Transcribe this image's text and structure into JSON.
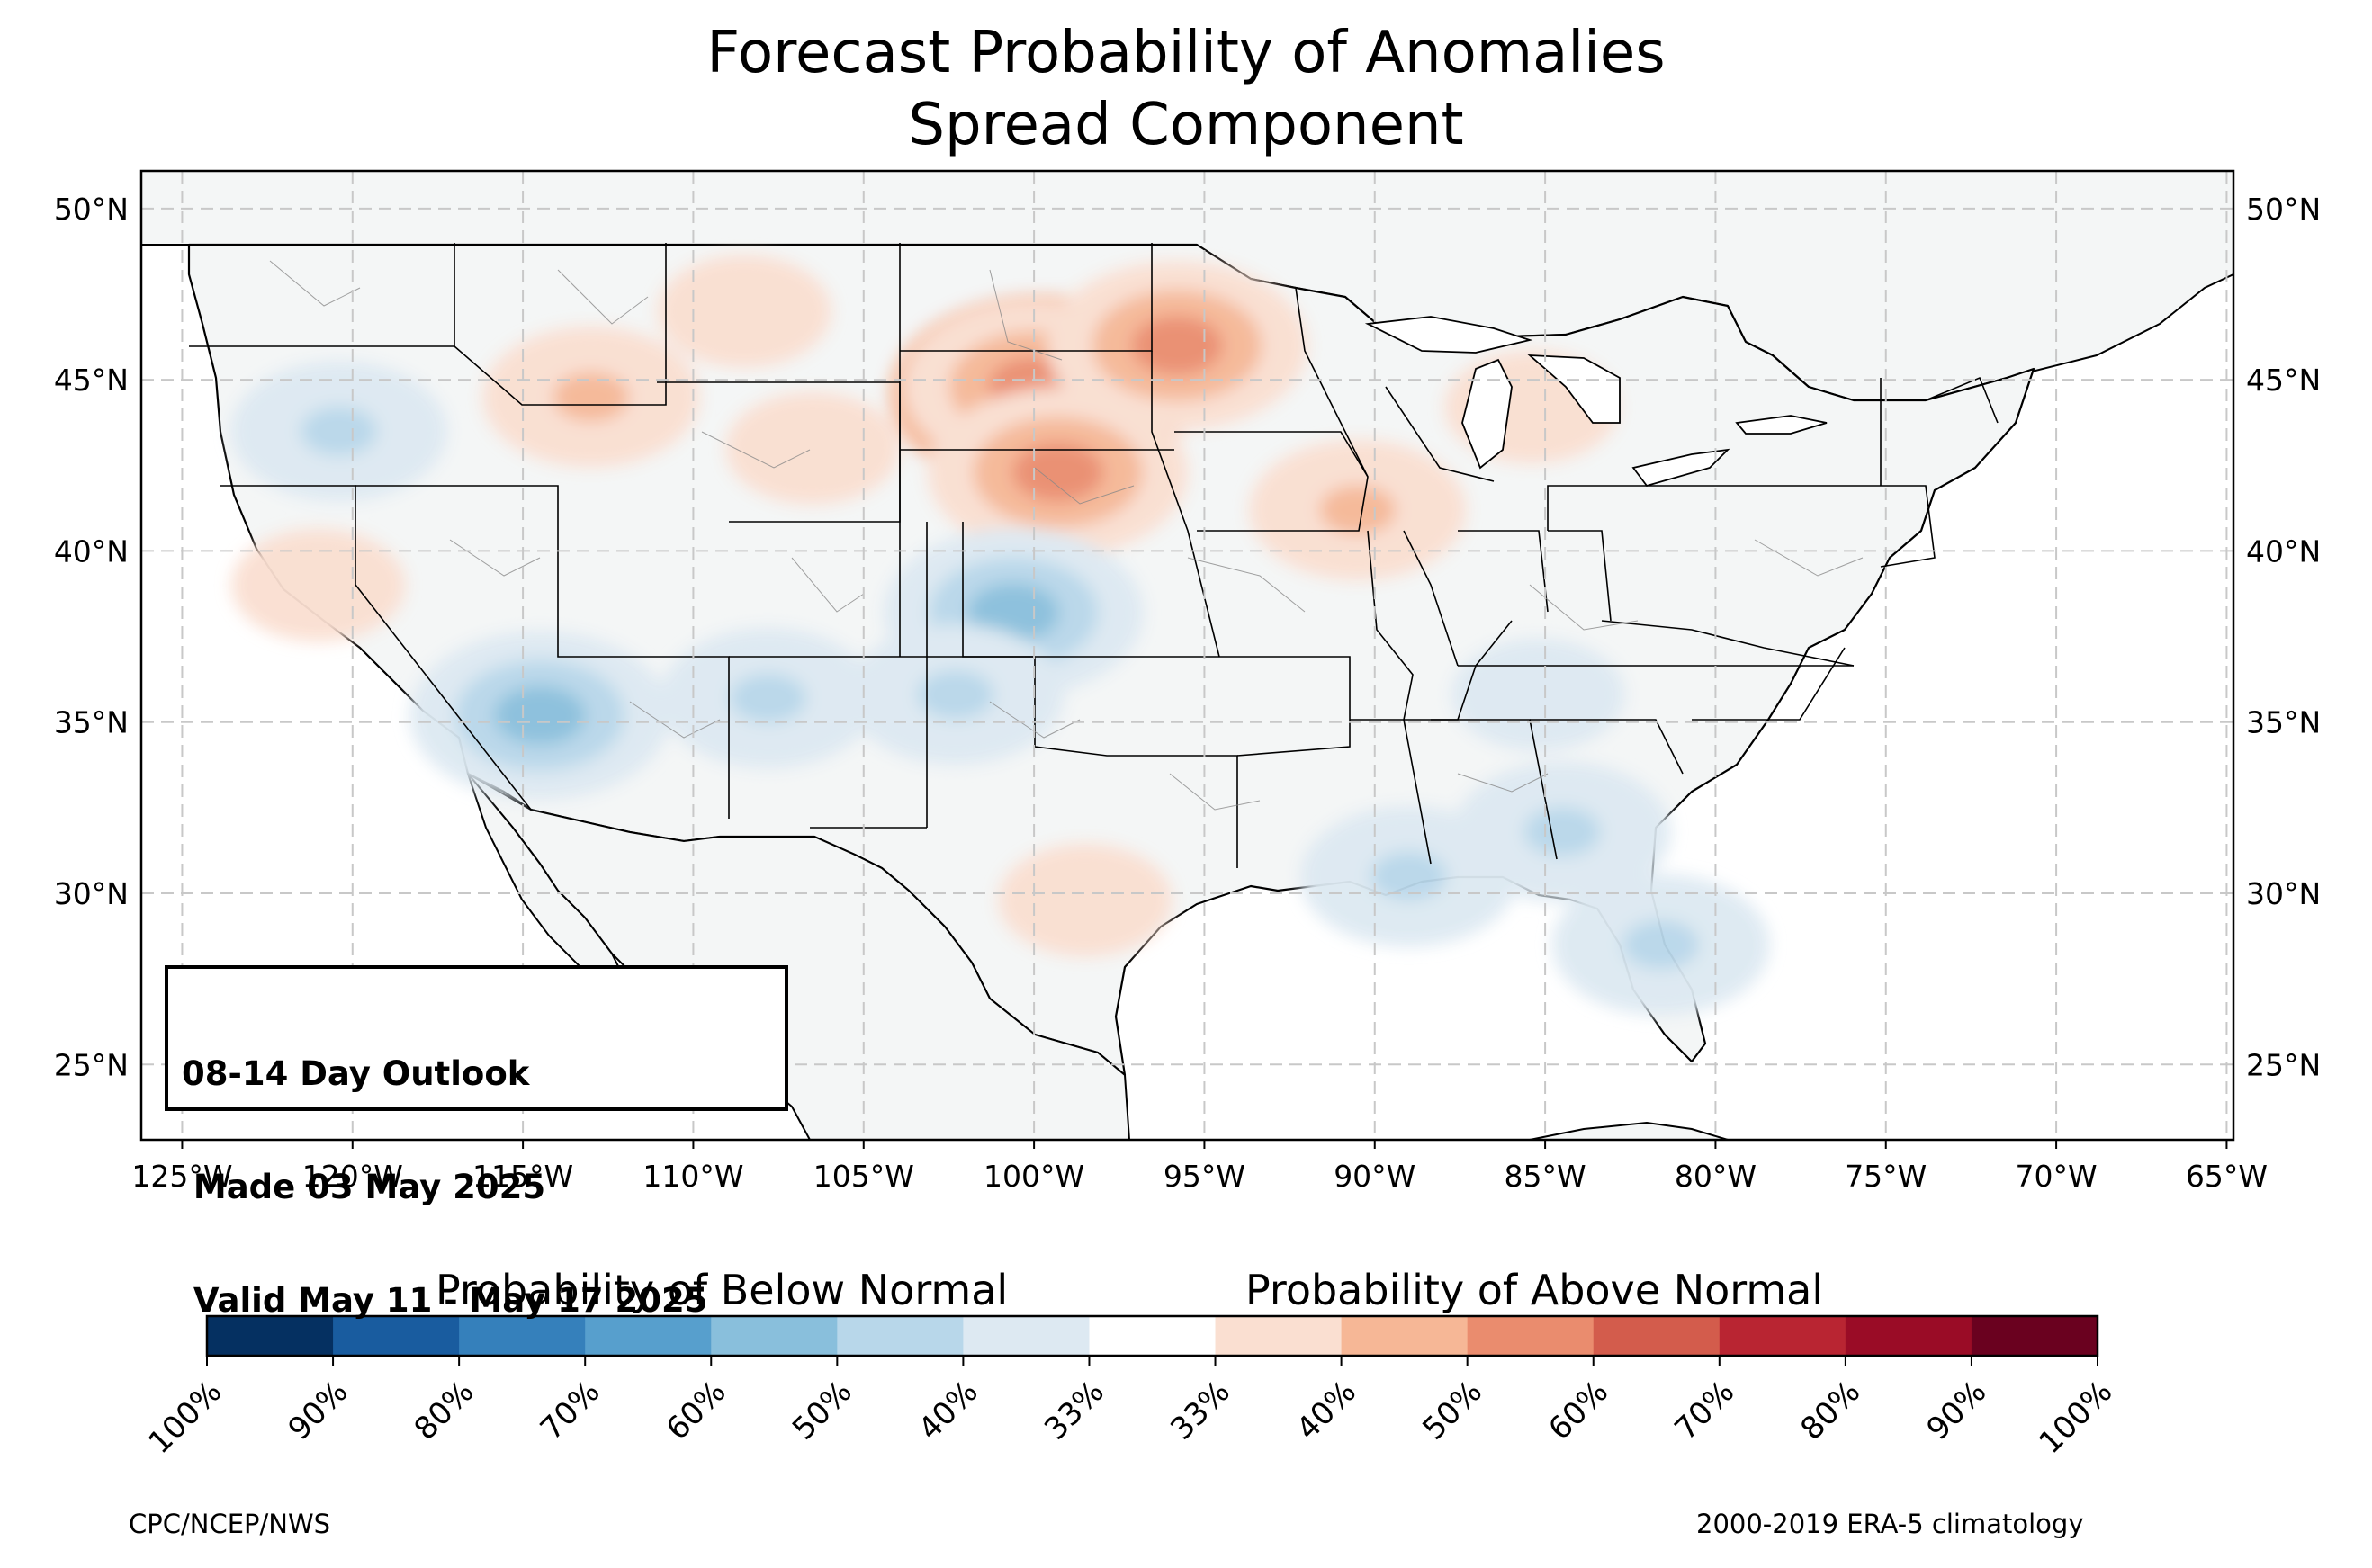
{
  "title": {
    "line1": "Forecast Probability of Anomalies",
    "line2": "Spread Component"
  },
  "outlook": {
    "line1": "08-14 Day Outlook",
    "line2": " Made 03 May 2025",
    "line3": " Valid May 11 - May 17 2025"
  },
  "map": {
    "lat_labels": [
      "50°N",
      "45°N",
      "40°N",
      "35°N",
      "30°N",
      "25°N"
    ],
    "lat_values": [
      50,
      45,
      40,
      35,
      30,
      25
    ],
    "lon_labels": [
      "125°W",
      "120°W",
      "115°W",
      "110°W",
      "105°W",
      "100°W",
      "95°W",
      "90°W",
      "85°W",
      "80°W",
      "75°W",
      "70°W",
      "65°W"
    ],
    "lon_values": [
      -125,
      -120,
      -115,
      -110,
      -105,
      -100,
      -95,
      -90,
      -85,
      -80,
      -75,
      -70,
      -65
    ],
    "extent": {
      "lon_min": -126.2,
      "lon_max": -64.8,
      "lat_min": 22.8,
      "lat_max": 51.1
    },
    "grid": "dashed",
    "land_color": "#f4f6f6",
    "above_regions": [
      {
        "name": "northern-plains",
        "lon": -99.8,
        "lat": 44.6,
        "level": 70
      },
      {
        "name": "northern-plains-core",
        "lon": -100.0,
        "lat": 44.8,
        "level": 60
      },
      {
        "name": "nebraska",
        "lon": -99.3,
        "lat": 42.3,
        "level": 60
      },
      {
        "name": "minnesota",
        "lon": -95.8,
        "lat": 46.0,
        "level": 60
      },
      {
        "name": "iowa-illinois",
        "lon": -90.5,
        "lat": 41.2,
        "level": 50
      },
      {
        "name": "michigan",
        "lon": -85.4,
        "lat": 44.2,
        "level": 40
      },
      {
        "name": "montana",
        "lon": -108.5,
        "lat": 47.0,
        "level": 40
      },
      {
        "name": "wyoming",
        "lon": -106.5,
        "lat": 43.0,
        "level": 40
      },
      {
        "name": "idaho",
        "lon": -113.0,
        "lat": 44.5,
        "level": 50
      },
      {
        "name": "california",
        "lon": -121.0,
        "lat": 39.0,
        "level": 40
      },
      {
        "name": "south-texas",
        "lon": -98.5,
        "lat": 29.8,
        "level": 40
      }
    ],
    "below_regions": [
      {
        "name": "kansas-colorado",
        "lon": -100.6,
        "lat": 38.2,
        "level": 60
      },
      {
        "name": "oklahoma-panhandle",
        "lon": -102.3,
        "lat": 35.8,
        "level": 50
      },
      {
        "name": "arizona-nevada",
        "lon": -114.5,
        "lat": 35.2,
        "level": 60
      },
      {
        "name": "new-mexico",
        "lon": -107.8,
        "lat": 35.7,
        "level": 50
      },
      {
        "name": "gulf-coast",
        "lon": -89.0,
        "lat": 30.5,
        "level": 50
      },
      {
        "name": "alabama-georgia",
        "lon": -84.5,
        "lat": 31.8,
        "level": 50
      },
      {
        "name": "florida",
        "lon": -81.6,
        "lat": 28.5,
        "level": 50
      },
      {
        "name": "tennessee",
        "lon": -85.2,
        "lat": 35.8,
        "level": 40
      },
      {
        "name": "oregon",
        "lon": -120.4,
        "lat": 43.5,
        "level": 50
      }
    ]
  },
  "colorbar": {
    "below_label": "Probability of Below Normal",
    "above_label": "Probability of Above Normal",
    "ticks": [
      "100%",
      "90%",
      "80%",
      "70%",
      "60%",
      "50%",
      "40%",
      "33%",
      "33%",
      "40%",
      "50%",
      "60%",
      "70%",
      "80%",
      "90%",
      "100%"
    ],
    "colors": [
      "#053061",
      "#195c9f",
      "#3580bb",
      "#579fcd",
      "#89bfdc",
      "#b8d7ea",
      "#dde9f2",
      "#ffffff",
      "#fadfd1",
      "#f6b796",
      "#ea8c6e",
      "#d35c4c",
      "#b92532",
      "#9a0c26",
      "#6a011f"
    ]
  },
  "credits": {
    "left": "CPC/NCEP/NWS",
    "right": "2000-2019 ERA-5 climatology"
  }
}
